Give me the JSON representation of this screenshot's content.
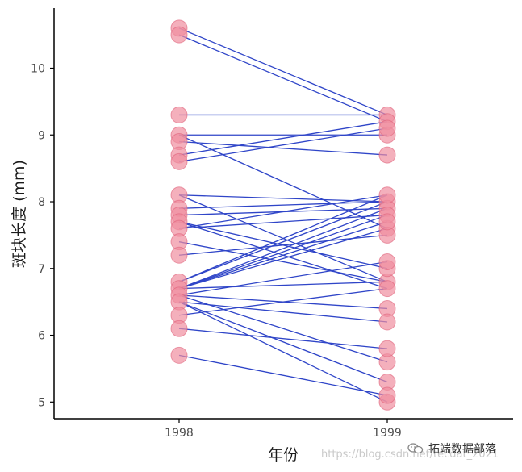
{
  "chart_data": {
    "type": "scatter",
    "title": "",
    "xlabel": "年份",
    "ylabel": "斑块长度 (mm)",
    "categories": [
      "1998",
      "1999"
    ],
    "ylim": [
      4.75,
      10.9
    ],
    "yticks": [
      "5",
      "6",
      "7",
      "8",
      "9",
      "10"
    ],
    "grid": false,
    "colors": {
      "point_fill": "#f08ea0",
      "point_stroke": "#e0607a",
      "line": "#2f45c8",
      "axis": "#000000"
    },
    "pairs": [
      [
        10.6,
        9.3
      ],
      [
        10.5,
        9.2
      ],
      [
        9.3,
        9.3
      ],
      [
        9.0,
        9.0
      ],
      [
        8.9,
        8.7
      ],
      [
        8.7,
        9.2
      ],
      [
        8.6,
        9.1
      ],
      [
        9.0,
        7.6
      ],
      [
        8.1,
        8.0
      ],
      [
        8.1,
        6.8
      ],
      [
        7.9,
        8.0
      ],
      [
        7.8,
        7.9
      ],
      [
        7.7,
        7.0
      ],
      [
        7.7,
        6.7
      ],
      [
        7.6,
        8.1
      ],
      [
        7.6,
        7.8
      ],
      [
        7.4,
        6.8
      ],
      [
        7.2,
        7.5
      ],
      [
        6.8,
        8.1
      ],
      [
        6.8,
        8.0
      ],
      [
        6.7,
        7.9
      ],
      [
        6.7,
        7.8
      ],
      [
        6.7,
        7.7
      ],
      [
        6.7,
        7.6
      ],
      [
        6.6,
        7.1
      ],
      [
        6.7,
        6.8
      ],
      [
        6.6,
        6.4
      ],
      [
        6.5,
        6.2
      ],
      [
        6.6,
        5.6
      ],
      [
        6.5,
        5.3
      ],
      [
        6.5,
        5.0
      ],
      [
        6.3,
        6.7
      ],
      [
        6.1,
        5.8
      ],
      [
        5.7,
        5.1
      ]
    ]
  },
  "watermark": "https://blog.csdn.net/tecdat_2021",
  "brand": {
    "icon": "wechat-icon",
    "label": "拓端数据部落"
  }
}
